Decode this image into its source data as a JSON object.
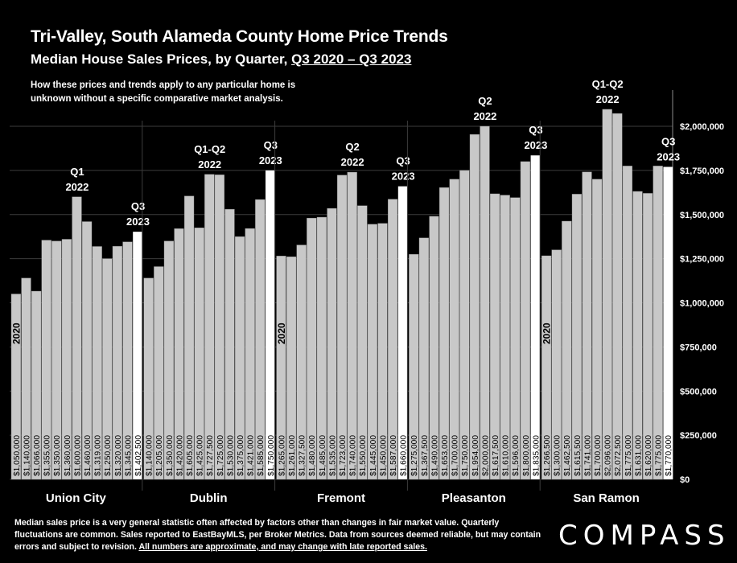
{
  "header": {
    "title": "Tri-Valley, South Alameda County Home Price Trends",
    "subtitle_prefix": "Median House Sales Prices, by Quarter, ",
    "subtitle_range": "Q3 2020 – Q3 2023",
    "note": "How these prices and trends apply to any particular home is unknown without a specific comparative market analysis."
  },
  "footer": {
    "text": "Median sales price is a very general statistic often affected by factors other than changes in fair market value. Quarterly fluctuations are common. Sales reported to EastBayMLS, per Broker Metrics. Data from sources deemed reliable, but may contain errors and subject to revision. ",
    "underlined": "All numbers are approximate, and may change with late reported sales.",
    "logo": "COMPASS"
  },
  "chart_data": {
    "type": "bar",
    "ylim": [
      0,
      2000000
    ],
    "y_ticks": [
      0,
      250000,
      500000,
      750000,
      1000000,
      1250000,
      1500000,
      1750000,
      2000000
    ],
    "y_tick_labels": [
      "$0",
      "$250,000",
      "$500,000",
      "$750,000",
      "$1,000,000",
      "$1,250,000",
      "$1,500,000",
      "$1,750,000",
      "$2,000,000"
    ],
    "grid": true,
    "bar_color": "#c8c8c8",
    "highlight_color": "#ffffff",
    "groups": [
      {
        "name": "Union City",
        "year_label": "2020",
        "values": [
          1050000,
          1140000,
          1066000,
          1355000,
          1350000,
          1360000,
          1600000,
          1460000,
          1319000,
          1250000,
          1320000,
          1345000,
          1402500
        ],
        "value_labels": [
          "$1,050,000",
          "$1,140,000",
          "$1,066,000",
          "$1,355,000",
          "$1,350,000",
          "$1,360,000",
          "$1,600,000",
          "$1,460,000",
          "$1,319,000",
          "$1,250,000",
          "$1,320,000",
          "$1,345,000",
          "$1,402,500"
        ],
        "annotations": [
          {
            "index": 6,
            "lines": [
              "Q1",
              "2022"
            ]
          },
          {
            "index": 12,
            "lines": [
              "Q3",
              "2023"
            ]
          }
        ]
      },
      {
        "name": "Dublin",
        "year_label": "",
        "values": [
          1140000,
          1205000,
          1350000,
          1420000,
          1605000,
          1425000,
          1727500,
          1725000,
          1530000,
          1375000,
          1421000,
          1585000,
          1750000
        ],
        "value_labels": [
          "$1,140,000",
          "$1,205,000",
          "$1,350,000",
          "$1,420,000",
          "$1,605,000",
          "$1,425,000",
          "$1,727,500",
          "$1,725,000",
          "$1,530,000",
          "$1,375,000",
          "$1,421,000",
          "$1,585,000",
          "$1,750,000"
        ],
        "annotations": [
          {
            "index": 6,
            "lines": [
              "Q1-Q2",
              "2022"
            ]
          },
          {
            "index": 12,
            "lines": [
              "Q3",
              "2023"
            ]
          }
        ]
      },
      {
        "name": "Fremont",
        "year_label": "2020",
        "values": [
          1265000,
          1261000,
          1327500,
          1480000,
          1485000,
          1535000,
          1723000,
          1740000,
          1550000,
          1445000,
          1450000,
          1587000,
          1660000
        ],
        "value_labels": [
          "$1,265,000",
          "$1,261,000",
          "$1,327,500",
          "$1,480,000",
          "$1,485,000",
          "$1,535,000",
          "$1,723,000",
          "$1,740,000",
          "$1,550,000",
          "$1,445,000",
          "$1,450,000",
          "$1,587,000",
          "$1,660,000"
        ],
        "annotations": [
          {
            "index": 7,
            "lines": [
              "Q2",
              "2022"
            ]
          },
          {
            "index": 12,
            "lines": [
              "Q3",
              "2023"
            ]
          }
        ]
      },
      {
        "name": "Pleasanton",
        "year_label": "",
        "values": [
          1275000,
          1367500,
          1490000,
          1653000,
          1700000,
          1750000,
          1954000,
          2000000,
          1617500,
          1610000,
          1596000,
          1800000,
          1835000
        ],
        "value_labels": [
          "$1,275,000",
          "$1,367,500",
          "$1,490,000",
          "$1,653,000",
          "$1,700,000",
          "$1,750,000",
          "$1,954,000",
          "$2,000,000",
          "$1,617,500",
          "$1,610,000",
          "$1,596,000",
          "$1,800,000",
          "$1,835,000"
        ],
        "annotations": [
          {
            "index": 7,
            "lines": [
              "Q2",
              "2022"
            ]
          },
          {
            "index": 12,
            "lines": [
              "Q3",
              "2023"
            ]
          }
        ]
      },
      {
        "name": "San Ramon",
        "year_label": "2020",
        "values": [
          1266500,
          1300000,
          1462500,
          1615500,
          1741000,
          1700000,
          2096000,
          2072500,
          1775000,
          1631000,
          1620000,
          1775000,
          1770000
        ],
        "value_labels": [
          "$1,266,500",
          "$1,300,000",
          "$1,462,500",
          "$1,615,500",
          "$1,741,000",
          "$1,700,000",
          "$2,096,000",
          "$2,072,500",
          "$1,775,000",
          "$1,631,000",
          "$1,620,000",
          "$1,775,000",
          "$1,770,000"
        ],
        "annotations": [
          {
            "index": 6,
            "lines": [
              "Q1-Q2",
              "2022"
            ]
          },
          {
            "index": 12,
            "lines": [
              "Q3",
              "2023"
            ]
          }
        ]
      }
    ]
  }
}
